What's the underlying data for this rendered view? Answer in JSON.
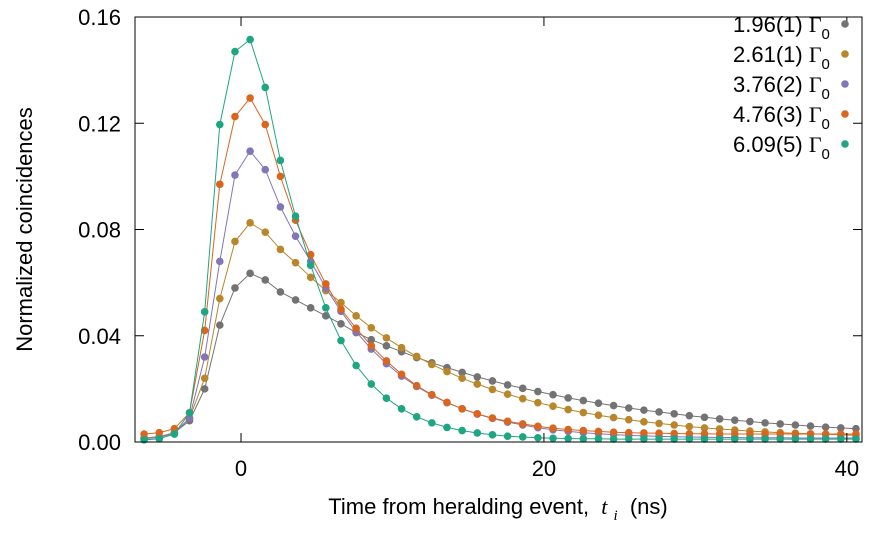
{
  "chart_data": {
    "type": "line",
    "title": "",
    "xlabel": "Time from heralding event,",
    "xlabel_var": "t",
    "xlabel_sub": "i",
    "xlabel_unit": "(ns)",
    "ylabel": "Normalized coincidences",
    "xlim": [
      -7,
      41
    ],
    "ylim": [
      0,
      0.16
    ],
    "xticks": [
      0,
      20,
      40
    ],
    "xtick_labels": [
      "0",
      "20",
      "40"
    ],
    "yticks": [
      0,
      0.04,
      0.08,
      0.12,
      0.16
    ],
    "ytick_labels": [
      "0.00",
      "0.04",
      "0.08",
      "0.12",
      "0.16"
    ],
    "grid": false,
    "legend_position": "top-right",
    "legend_symbol": "Γ",
    "legend_sub": "0",
    "x": [
      -6.4,
      -5.4,
      -4.4,
      -3.4,
      -2.4,
      -1.4,
      -0.4,
      0.6,
      1.6,
      2.6,
      3.6,
      4.6,
      5.6,
      6.6,
      7.6,
      8.6,
      9.6,
      10.6,
      11.6,
      12.6,
      13.6,
      14.6,
      15.6,
      16.6,
      17.6,
      18.6,
      19.6,
      20.6,
      21.6,
      22.6,
      23.6,
      24.6,
      25.6,
      26.6,
      27.6,
      28.6,
      29.6,
      30.6,
      31.6,
      32.6,
      33.6,
      34.6,
      35.6,
      36.6,
      37.6,
      38.6,
      39.6,
      40.6
    ],
    "series": [
      {
        "name": "1.96(1)",
        "color": "#737373",
        "values": [
          0.0015,
          0.002,
          0.0035,
          0.008,
          0.02,
          0.044,
          0.058,
          0.0635,
          0.061,
          0.0565,
          0.0535,
          0.0505,
          0.0475,
          0.0445,
          0.0412,
          0.0385,
          0.0362,
          0.034,
          0.0318,
          0.0298,
          0.028,
          0.0262,
          0.0245,
          0.023,
          0.0215,
          0.0202,
          0.019,
          0.0178,
          0.0166,
          0.0156,
          0.0146,
          0.0137,
          0.0128,
          0.012,
          0.0113,
          0.0106,
          0.0099,
          0.0093,
          0.0087,
          0.0082,
          0.0077,
          0.0072,
          0.0068,
          0.0064,
          0.006,
          0.0056,
          0.0053,
          0.005
        ]
      },
      {
        "name": "2.61(1)",
        "color": "#b8862b",
        "values": [
          0.0015,
          0.002,
          0.0035,
          0.009,
          0.024,
          0.054,
          0.0755,
          0.0825,
          0.079,
          0.0725,
          0.0675,
          0.062,
          0.057,
          0.0525,
          0.0475,
          0.043,
          0.0392,
          0.0355,
          0.0322,
          0.0292,
          0.0265,
          0.024,
          0.0218,
          0.0198,
          0.018,
          0.0163,
          0.0148,
          0.0135,
          0.0122,
          0.0111,
          0.0101,
          0.0092,
          0.0084,
          0.0076,
          0.007,
          0.0064,
          0.0058,
          0.0053,
          0.0049,
          0.0045,
          0.0041,
          0.0038,
          0.0035,
          0.0033,
          0.0031,
          0.0029,
          0.0027,
          0.0025
        ]
      },
      {
        "name": "3.76(2)",
        "color": "#8076b8",
        "values": [
          0.0012,
          0.0018,
          0.0032,
          0.009,
          0.032,
          0.068,
          0.1005,
          0.1095,
          0.1025,
          0.0885,
          0.0775,
          0.068,
          0.058,
          0.0492,
          0.0415,
          0.035,
          0.0295,
          0.0248,
          0.0209,
          0.0176,
          0.0148,
          0.0125,
          0.0105,
          0.0089,
          0.0075,
          0.0064,
          0.0054,
          0.0046,
          0.004,
          0.0035,
          0.0031,
          0.0028,
          0.0025,
          0.0023,
          0.0021,
          0.002,
          0.0019,
          0.0018,
          0.0017,
          0.0017,
          0.0016,
          0.0016,
          0.0016,
          0.0015,
          0.0015,
          0.0015,
          0.0015,
          0.0015
        ]
      },
      {
        "name": "4.76(3)",
        "color": "#d9651e",
        "values": [
          0.003,
          0.0035,
          0.005,
          0.011,
          0.042,
          0.097,
          0.1225,
          0.1295,
          0.1195,
          0.1,
          0.0835,
          0.0705,
          0.0595,
          0.05,
          0.0428,
          0.0362,
          0.0305,
          0.0255,
          0.0212,
          0.0178,
          0.0149,
          0.0125,
          0.0106,
          0.009,
          0.0078,
          0.0068,
          0.0059,
          0.0052,
          0.0047,
          0.0043,
          0.004,
          0.0037,
          0.0035,
          0.0034,
          0.0033,
          0.0032,
          0.0031,
          0.0031,
          0.003,
          0.003,
          0.003,
          0.003,
          0.003,
          0.003,
          0.003,
          0.003,
          0.003,
          0.003
        ]
      },
      {
        "name": "6.09(5)",
        "color": "#1ea582",
        "values": [
          0.0008,
          0.0012,
          0.003,
          0.011,
          0.049,
          0.1195,
          0.147,
          0.1515,
          0.1335,
          0.106,
          0.085,
          0.0665,
          0.0505,
          0.0382,
          0.0288,
          0.0218,
          0.0165,
          0.0125,
          0.0095,
          0.0072,
          0.0055,
          0.0043,
          0.0034,
          0.0027,
          0.0022,
          0.0019,
          0.0016,
          0.0014,
          0.0013,
          0.0012,
          0.0012,
          0.0011,
          0.0011,
          0.0011,
          0.0011,
          0.0011,
          0.0011,
          0.0011,
          0.0011,
          0.0011,
          0.0011,
          0.0011,
          0.0011,
          0.0011,
          0.0011,
          0.0011,
          0.0011,
          0.0011
        ]
      }
    ]
  }
}
